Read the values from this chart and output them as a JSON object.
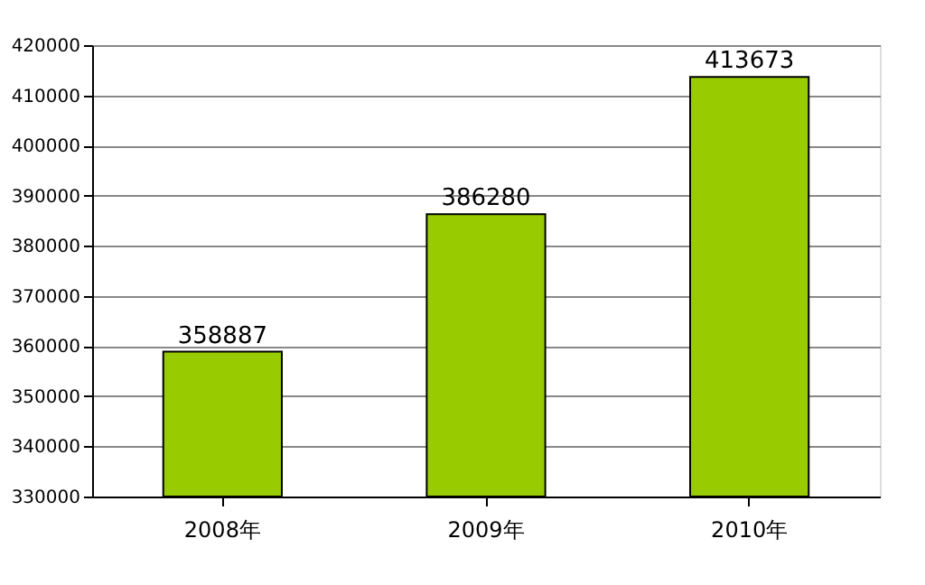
{
  "chart_data": {
    "type": "bar",
    "categories": [
      "2008年",
      "2009年",
      "2010年"
    ],
    "values": [
      358887,
      386280,
      413673
    ],
    "color": "#99cc00",
    "ylim": [
      330000,
      420000
    ],
    "yticks": [
      330000,
      340000,
      350000,
      360000,
      370000,
      380000,
      390000,
      400000,
      410000,
      420000
    ],
    "grid": "y",
    "data_labels": true
  }
}
